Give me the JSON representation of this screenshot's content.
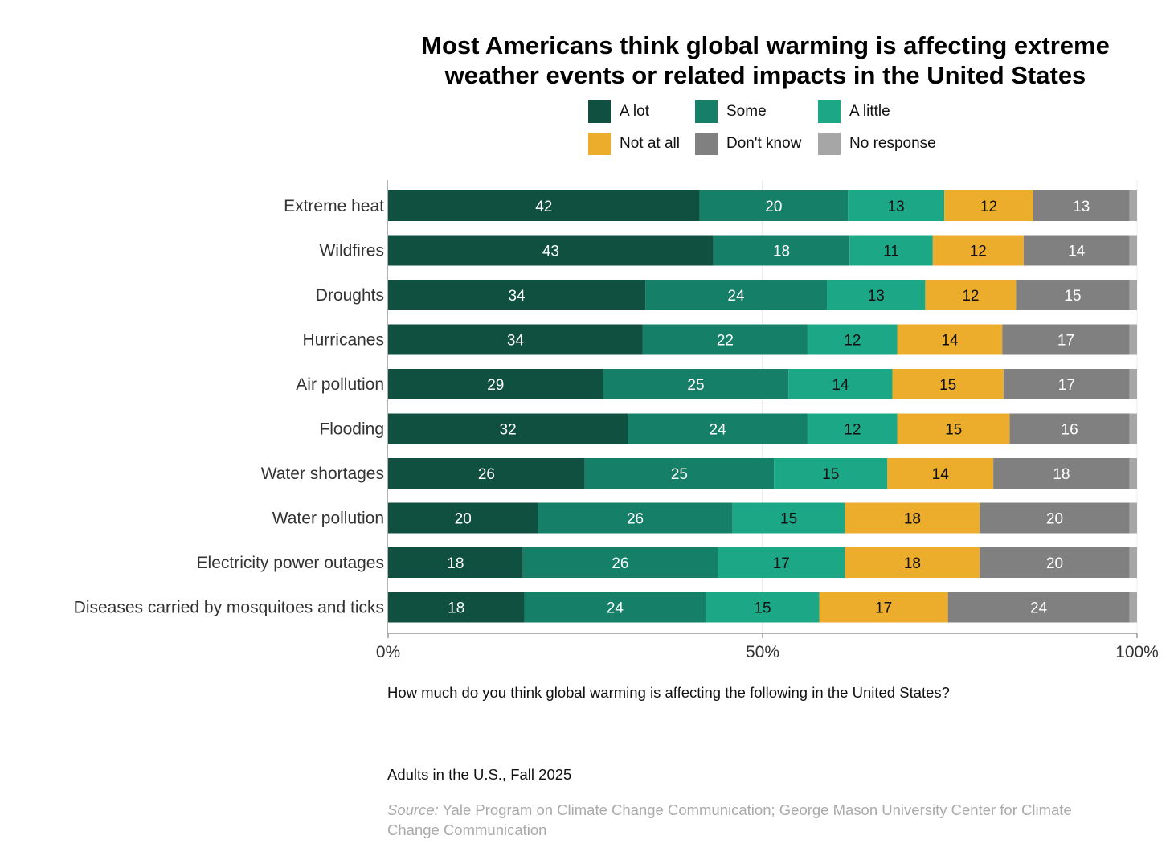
{
  "chart_data": {
    "type": "bar",
    "orientation": "horizontal",
    "stacked": true,
    "title": "Most Americans think global warming is affecting extreme weather events or related impacts in the United States",
    "title_lines": [
      "Most Americans think global warming is affecting extreme",
      "weather events or related impacts in the United States"
    ],
    "categories": [
      "Extreme heat",
      "Wildfires",
      "Droughts",
      "Hurricanes",
      "Air pollution",
      "Flooding",
      "Water shortages",
      "Water pollution",
      "Electricity power outages",
      "Diseases carried by mosquitoes and ticks"
    ],
    "series": [
      {
        "name": "A lot",
        "color": "#0f5041",
        "values": [
          42,
          43,
          34,
          34,
          29,
          32,
          26,
          20,
          18,
          18
        ],
        "label_color": "#ffffff"
      },
      {
        "name": "Some",
        "color": "#167f68",
        "values": [
          20,
          18,
          24,
          22,
          25,
          24,
          25,
          26,
          26,
          24
        ],
        "label_color": "#ffffff"
      },
      {
        "name": "A little",
        "color": "#1ca887",
        "values": [
          13,
          11,
          13,
          12,
          14,
          12,
          15,
          15,
          17,
          15
        ],
        "label_color": "#111111"
      },
      {
        "name": "Not at all",
        "color": "#ecac2c",
        "values": [
          12,
          12,
          12,
          14,
          15,
          15,
          14,
          18,
          18,
          17
        ],
        "label_color": "#111111"
      },
      {
        "name": "Don't know",
        "color": "#808080",
        "values": [
          13,
          14,
          15,
          17,
          17,
          16,
          18,
          20,
          20,
          24
        ],
        "label_color": "#ffffff"
      },
      {
        "name": "No response",
        "color": "#a6a6a6",
        "values": [
          1,
          1,
          1,
          1,
          1,
          1,
          1,
          1,
          1,
          1
        ],
        "show_labels": false
      }
    ],
    "x_ticks": [
      "0%",
      "50%",
      "100%"
    ],
    "xlim": [
      0,
      100
    ],
    "grid": "vertical at 50%",
    "legend_position": "top-right"
  },
  "notes": {
    "question": "How much do you think global warming is affecting the following in the United States?",
    "population": "Adults in the U.S., Fall 2025",
    "source_label": "Source:",
    "source_text": "Yale Program on Climate Change Communication; George Mason University Center for Climate Change Communication"
  }
}
